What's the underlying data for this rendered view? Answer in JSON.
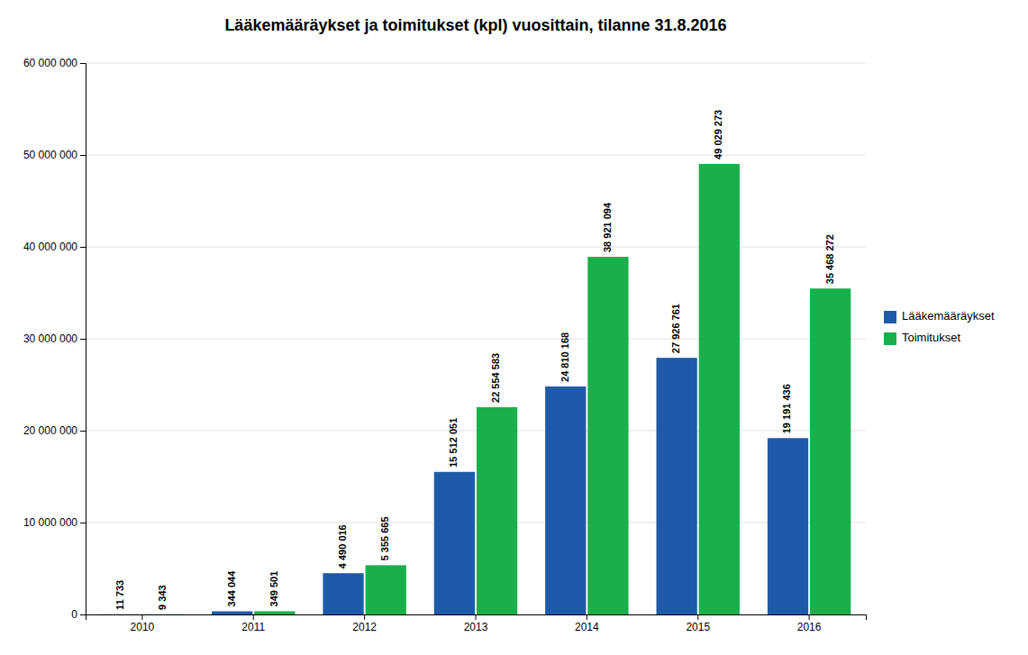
{
  "chart_data": {
    "type": "bar",
    "title": "Lääkemääräykset ja toimitukset (kpl) vuosittain, tilanne 31.8.2016",
    "categories": [
      "2010",
      "2011",
      "2012",
      "2013",
      "2014",
      "2015",
      "2016"
    ],
    "series": [
      {
        "name": "Lääkemääräykset",
        "color": "#1F5AA8",
        "values": [
          11733,
          344044,
          4490016,
          15512051,
          24810168,
          27926761,
          19191436
        ],
        "value_labels": [
          "11 733",
          "344 044",
          "4 490 016",
          "15 512 051",
          "24 810 168",
          "27 926 761",
          "19 191 436"
        ]
      },
      {
        "name": "Toimitukset",
        "color": "#1AAF4B",
        "values": [
          9343,
          349501,
          5355665,
          22554583,
          38921094,
          49029273,
          35468272
        ],
        "value_labels": [
          "9 343",
          "349 501",
          "5 355 665",
          "22 554 583",
          "38 921 094",
          "49 029 273",
          "35 468 272"
        ]
      }
    ],
    "ylim": [
      0,
      60000000
    ],
    "yticks": [
      0,
      {
        "value": 10000000,
        "label": "10 000 000"
      },
      {
        "value": 20000000,
        "label": "20 000 000"
      },
      {
        "value": 30000000,
        "label": "30 000 000"
      },
      {
        "value": 40000000,
        "label": "40 000 000"
      },
      {
        "value": 50000000,
        "label": "50 000 000"
      },
      {
        "value": 60000000,
        "label": "60 000 000"
      }
    ],
    "grid": true,
    "legend": "right",
    "data_labels": true
  }
}
